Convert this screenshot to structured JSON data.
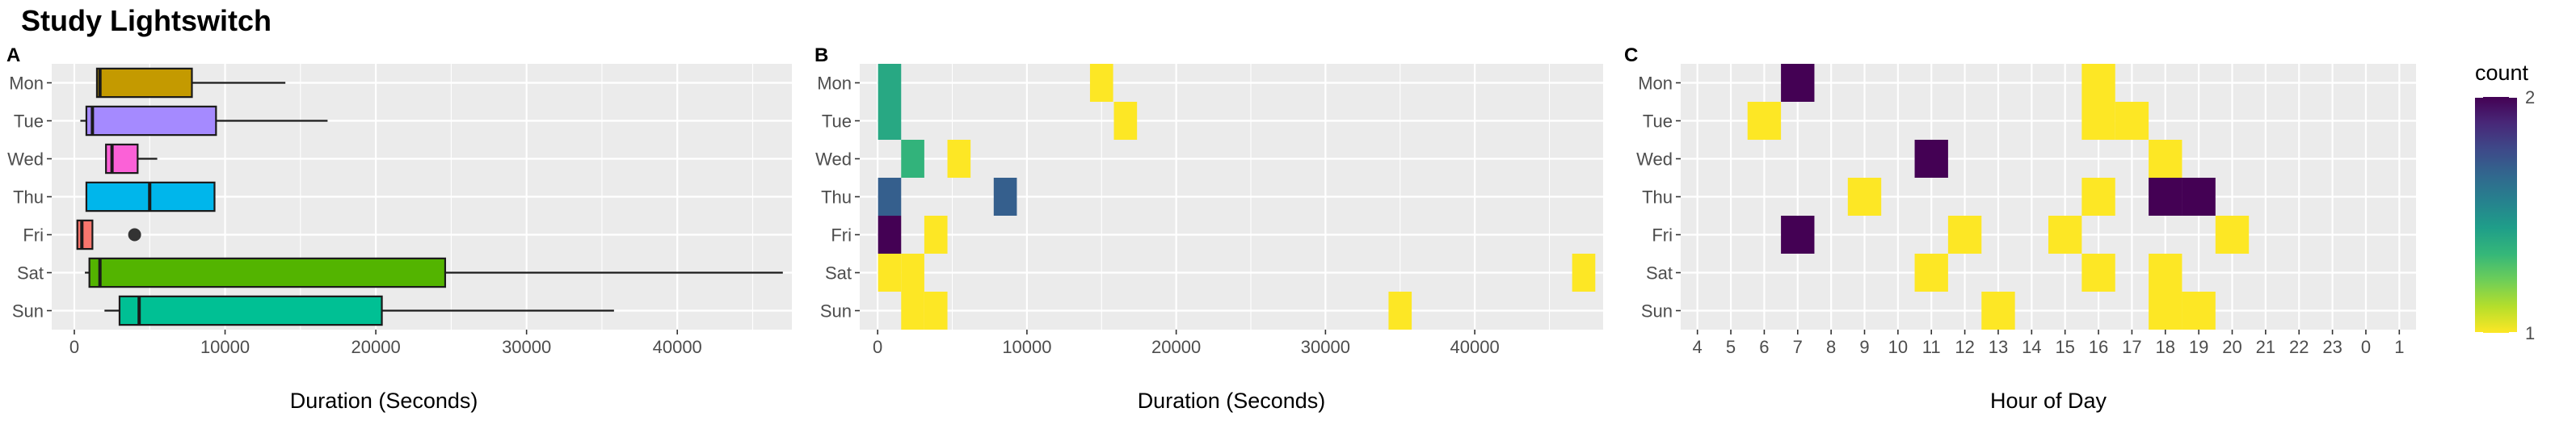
{
  "title": "Study Lightswitch",
  "days": [
    "Mon",
    "Tue",
    "Wed",
    "Thu",
    "Fri",
    "Sat",
    "Sun"
  ],
  "colors": {
    "panel_bg": "#ebebeb",
    "grid": "#ffffff",
    "box_outline": "#1a1a1a",
    "outlier": "#333333",
    "viridis_low": "#fde725",
    "viridis_high": "#440154"
  },
  "chart_data": [
    {
      "panel": "A",
      "type": "boxplot",
      "orientation": "horizontal",
      "xlabel": "Duration (Seconds)",
      "ylabel": "",
      "xlim": [
        -1500,
        47600
      ],
      "xticks": [
        0,
        10000,
        20000,
        30000,
        40000
      ],
      "xtick_labels": [
        "0",
        "10000",
        "20000",
        "30000",
        "40000"
      ],
      "categories": [
        "Mon",
        "Tue",
        "Wed",
        "Thu",
        "Fri",
        "Sat",
        "Sun"
      ],
      "boxes": [
        {
          "day": "Mon",
          "whisker_low": 1500,
          "q1": 1500,
          "median": 1700,
          "q3": 7800,
          "whisker_high": 14000,
          "fill": "#c49a00",
          "outliers": []
        },
        {
          "day": "Tue",
          "whisker_low": 400,
          "q1": 800,
          "median": 1200,
          "q3": 9400,
          "whisker_high": 16800,
          "fill": "#a58aff",
          "outliers": []
        },
        {
          "day": "Wed",
          "whisker_low": 2100,
          "q1": 2100,
          "median": 2500,
          "q3": 4200,
          "whisker_high": 5500,
          "fill": "#fb61d7",
          "outliers": []
        },
        {
          "day": "Thu",
          "whisker_low": 800,
          "q1": 800,
          "median": 5000,
          "q3": 9300,
          "whisker_high": 9300,
          "fill": "#00b6eb",
          "outliers": []
        },
        {
          "day": "Fri",
          "whisker_low": 200,
          "q1": 200,
          "median": 500,
          "q3": 1200,
          "whisker_high": 1200,
          "fill": "#f8766d",
          "outliers": [
            4000
          ]
        },
        {
          "day": "Sat",
          "whisker_low": 700,
          "q1": 1000,
          "median": 1700,
          "q3": 24600,
          "whisker_high": 47000,
          "fill": "#53b400",
          "outliers": []
        },
        {
          "day": "Sun",
          "whisker_low": 2000,
          "q1": 3000,
          "median": 4300,
          "q3": 20400,
          "whisker_high": 35800,
          "fill": "#00c094",
          "outliers": []
        }
      ]
    },
    {
      "panel": "B",
      "type": "heatmap",
      "xlabel": "Duration (Seconds)",
      "ylabel": "",
      "xlim": [
        -1200,
        48600
      ],
      "xticks": [
        0,
        10000,
        20000,
        30000,
        40000
      ],
      "xtick_labels": [
        "0",
        "10000",
        "20000",
        "30000",
        "40000"
      ],
      "categories": [
        "Mon",
        "Tue",
        "Wed",
        "Thu",
        "Fri",
        "Sat",
        "Sun"
      ],
      "bin_width": 1550,
      "legend": "shared with panel C",
      "tiles": [
        {
          "day": "Mon",
          "x": 800,
          "count": 1.4
        },
        {
          "day": "Mon",
          "x": 15000,
          "count": 1
        },
        {
          "day": "Tue",
          "x": 800,
          "count": 1.4
        },
        {
          "day": "Tue",
          "x": 16600,
          "count": 1
        },
        {
          "day": "Wed",
          "x": 2350,
          "count": 1.35
        },
        {
          "day": "Wed",
          "x": 5450,
          "count": 1
        },
        {
          "day": "Thu",
          "x": 800,
          "count": 1.7
        },
        {
          "day": "Thu",
          "x": 8550,
          "count": 1.7
        },
        {
          "day": "Fri",
          "x": 800,
          "count": 2
        },
        {
          "day": "Fri",
          "x": 3900,
          "count": 1
        },
        {
          "day": "Sat",
          "x": 800,
          "count": 1
        },
        {
          "day": "Sat",
          "x": 2350,
          "count": 1
        },
        {
          "day": "Sat",
          "x": 47300,
          "count": 1
        },
        {
          "day": "Sun",
          "x": 2350,
          "count": 1
        },
        {
          "day": "Sun",
          "x": 3900,
          "count": 1
        },
        {
          "day": "Sun",
          "x": 35000,
          "count": 1
        }
      ]
    },
    {
      "panel": "C",
      "type": "heatmap",
      "xlabel": "Hour of Day",
      "ylabel": "",
      "x_categories": [
        "4",
        "5",
        "6",
        "7",
        "8",
        "9",
        "10",
        "11",
        "12",
        "13",
        "14",
        "15",
        "16",
        "17",
        "18",
        "19",
        "20",
        "21",
        "22",
        "23",
        "0",
        "1"
      ],
      "categories": [
        "Mon",
        "Tue",
        "Wed",
        "Thu",
        "Fri",
        "Sat",
        "Sun"
      ],
      "tiles": [
        {
          "day": "Mon",
          "hour": "7",
          "count": 2
        },
        {
          "day": "Mon",
          "hour": "16",
          "count": 1
        },
        {
          "day": "Tue",
          "hour": "6",
          "count": 1
        },
        {
          "day": "Tue",
          "hour": "16",
          "count": 1
        },
        {
          "day": "Tue",
          "hour": "17",
          "count": 1
        },
        {
          "day": "Wed",
          "hour": "11",
          "count": 2
        },
        {
          "day": "Wed",
          "hour": "18",
          "count": 1
        },
        {
          "day": "Thu",
          "hour": "9",
          "count": 1
        },
        {
          "day": "Thu",
          "hour": "16",
          "count": 1
        },
        {
          "day": "Thu",
          "hour": "18",
          "count": 2
        },
        {
          "day": "Thu",
          "hour": "19",
          "count": 2
        },
        {
          "day": "Fri",
          "hour": "7",
          "count": 2
        },
        {
          "day": "Fri",
          "hour": "12",
          "count": 1
        },
        {
          "day": "Fri",
          "hour": "15",
          "count": 1
        },
        {
          "day": "Fri",
          "hour": "20",
          "count": 1
        },
        {
          "day": "Sat",
          "hour": "11",
          "count": 1
        },
        {
          "day": "Sat",
          "hour": "16",
          "count": 1
        },
        {
          "day": "Sat",
          "hour": "18",
          "count": 1
        },
        {
          "day": "Sun",
          "hour": "13",
          "count": 1
        },
        {
          "day": "Sun",
          "hour": "18",
          "count": 1
        },
        {
          "day": "Sun",
          "hour": "19",
          "count": 1
        }
      ]
    }
  ],
  "panel_labels": [
    "A",
    "B",
    "C"
  ],
  "legend": {
    "title": "count",
    "min": 1,
    "max": 2,
    "ticks": [
      1,
      2
    ],
    "tick_labels": [
      "1",
      "2"
    ],
    "colormap": "viridis"
  }
}
